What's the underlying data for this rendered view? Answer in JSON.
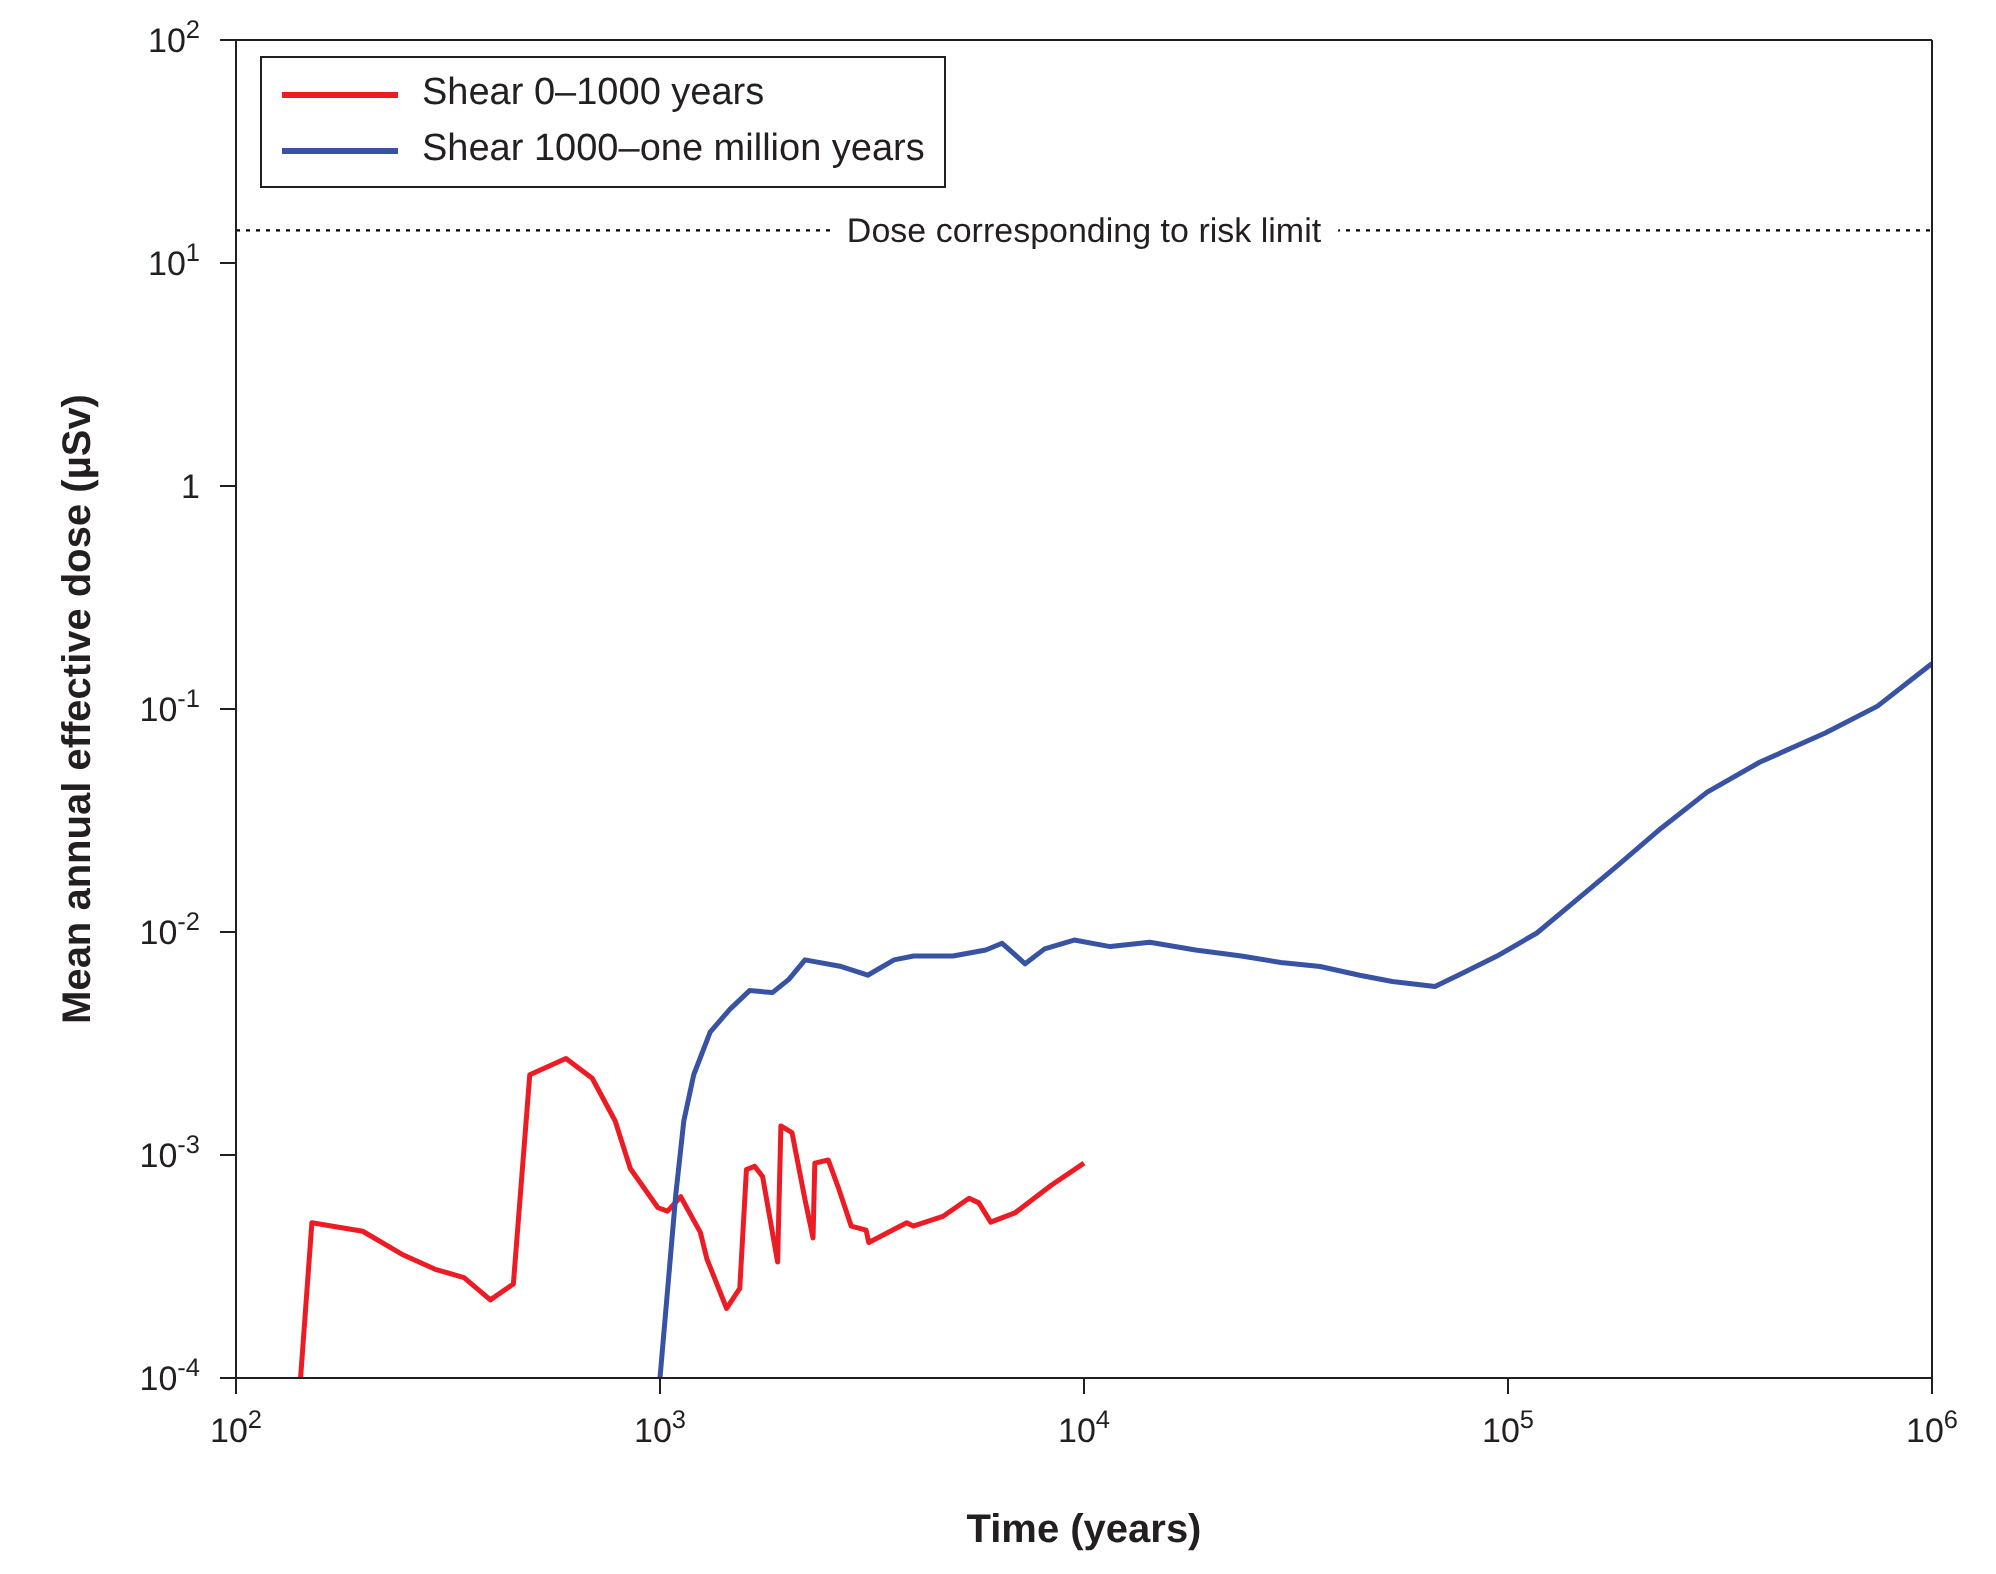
{
  "chart_data": {
    "type": "line",
    "xlabel": "Time (years)",
    "ylabel": "Mean annual effective dose (µSv)",
    "log": "xy",
    "legend": "top left",
    "marker": "none",
    "line_style": "solid",
    "xlim": [
      100,
      1000000
    ],
    "xticks": [
      {
        "value": 100,
        "label": "10$^{2}$"
      },
      {
        "value": 1000,
        "label": "10$^{3}$"
      },
      {
        "value": 10000,
        "label": "10$^{4}$"
      },
      {
        "value": 100000,
        "label": "10$^{5}$"
      },
      {
        "value": 1000000,
        "label": "10$^{6}$"
      }
    ],
    "ylim": [
      0.0001,
      100
    ],
    "yticks": [
      {
        "value": 0.0001,
        "label": "10$^{-4}$"
      },
      {
        "value": 0.001,
        "label": "10$^{-3}$"
      },
      {
        "value": 0.01,
        "label": "10$^{-2}$"
      },
      {
        "value": 0.1,
        "label": "10$^{-1}$"
      },
      {
        "value": 1,
        "label": "1"
      },
      {
        "value": 10,
        "label": "10$^{1}$"
      },
      {
        "value": 100,
        "label": "10$^{2}$"
      }
    ],
    "ref_lines": [
      {
        "axis": "y",
        "value": 14,
        "label": "Dose corresponding to risk limit",
        "line_style": "dotted",
        "color": "#000000"
      }
    ],
    "series": [
      {
        "name": "Shear 0–1000 years",
        "color": "#ed1c24",
        "x": [
          142,
          151,
          199,
          246,
          294,
          345,
          398,
          451,
          493,
          600,
          692,
          784,
          851,
          989,
          1042,
          1119,
          1245,
          1290,
          1436,
          1542,
          1599,
          1672,
          1746,
          1894,
          1928,
          2048,
          2198,
          2296,
          2318,
          2493,
          2630,
          2825,
          3063,
          3107,
          3818,
          3955,
          4645,
          5357,
          5650,
          6025,
          6870,
          8353,
          10000
        ],
        "values": [
          0.0001,
          0.000497,
          0.000455,
          0.000359,
          0.000308,
          0.000282,
          0.000224,
          0.000264,
          0.00229,
          0.00271,
          0.00221,
          0.00142,
          0.00087,
          0.00058,
          0.00056,
          0.00065,
          0.00045,
          0.000342,
          0.000205,
          0.000252,
          0.00086,
          0.00089,
          0.0008,
          0.000331,
          0.00135,
          0.00126,
          0.00063,
          0.000425,
          0.00092,
          0.00095,
          0.00072,
          0.00048,
          0.00046,
          0.000405,
          0.000497,
          0.00048,
          0.00053,
          0.00064,
          0.00061,
          0.0005,
          0.00055,
          0.00073,
          0.00092
        ]
      },
      {
        "name": "Shear 1000–one million years",
        "color": "#3953a4",
        "x": [
          1000,
          1090,
          1138,
          1201,
          1313,
          1461,
          1626,
          1841,
          2013,
          2198,
          2678,
          3090,
          3565,
          3963,
          4909,
          5867,
          6412,
          7263,
          8075,
          9480,
          11530,
          14290,
          18330,
          23500,
          29110,
          36060,
          44670,
          53370,
          67260,
          78890,
          94200,
          117000,
          144900,
          179200,
          229800,
          295000,
          392000,
          560000,
          744000,
          1000000
        ],
        "values": [
          0.0001,
          0.00067,
          0.00142,
          0.00229,
          0.00356,
          0.0045,
          0.00546,
          0.00535,
          0.00613,
          0.0075,
          0.007,
          0.0064,
          0.0075,
          0.0078,
          0.0078,
          0.0083,
          0.0089,
          0.0072,
          0.0084,
          0.0092,
          0.0086,
          0.009,
          0.0083,
          0.0078,
          0.0073,
          0.007,
          0.0064,
          0.006,
          0.0057,
          0.0066,
          0.0078,
          0.0099,
          0.0139,
          0.0195,
          0.0292,
          0.0424,
          0.0577,
          0.078,
          0.103,
          0.16
        ]
      }
    ]
  }
}
